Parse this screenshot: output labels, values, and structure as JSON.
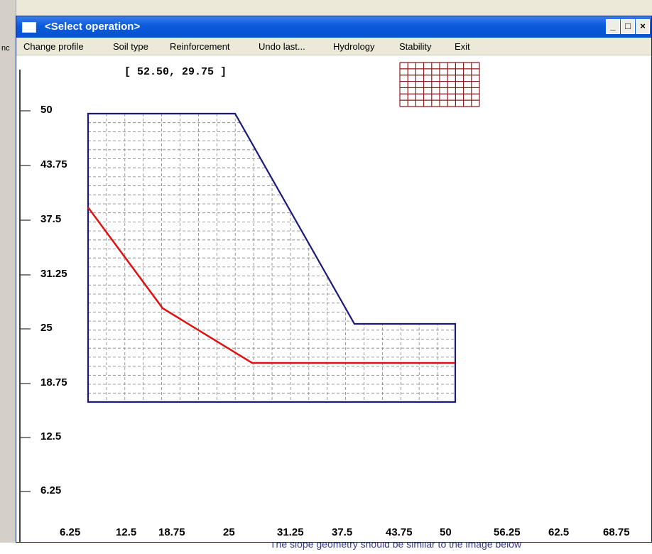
{
  "background": {
    "bottom_text": "The slope geometry should be similar to the image below",
    "left_glyphs": "nc"
  },
  "window": {
    "title": "<Select operation>",
    "buttons": {
      "minimize": "_",
      "maximize": "□",
      "close": "×"
    }
  },
  "menu": {
    "items": [
      "Change profile",
      "Soil type",
      "Reinforcement",
      "Undo last...",
      "Hydrology",
      "Stability",
      "Exit"
    ]
  },
  "plot": {
    "cursor_readout": "[ 52.50,  29.75 ]",
    "y_tick_labels": [
      "50",
      "43.75",
      "37.5",
      "31.25",
      "25",
      "18.75",
      "12.5",
      "6.25"
    ],
    "x_tick_labels": [
      "6.25",
      "12.5",
      "18.75",
      "25",
      "31.25",
      "37.5",
      "43.75",
      "50",
      "56.25",
      "62.5",
      "68.75"
    ],
    "colors": {
      "slope_profile": "#1a1a7a",
      "failure_surface": "#e01010",
      "reinforcement_grid": "#8b1a1a",
      "mesh": "#808080"
    }
  }
}
